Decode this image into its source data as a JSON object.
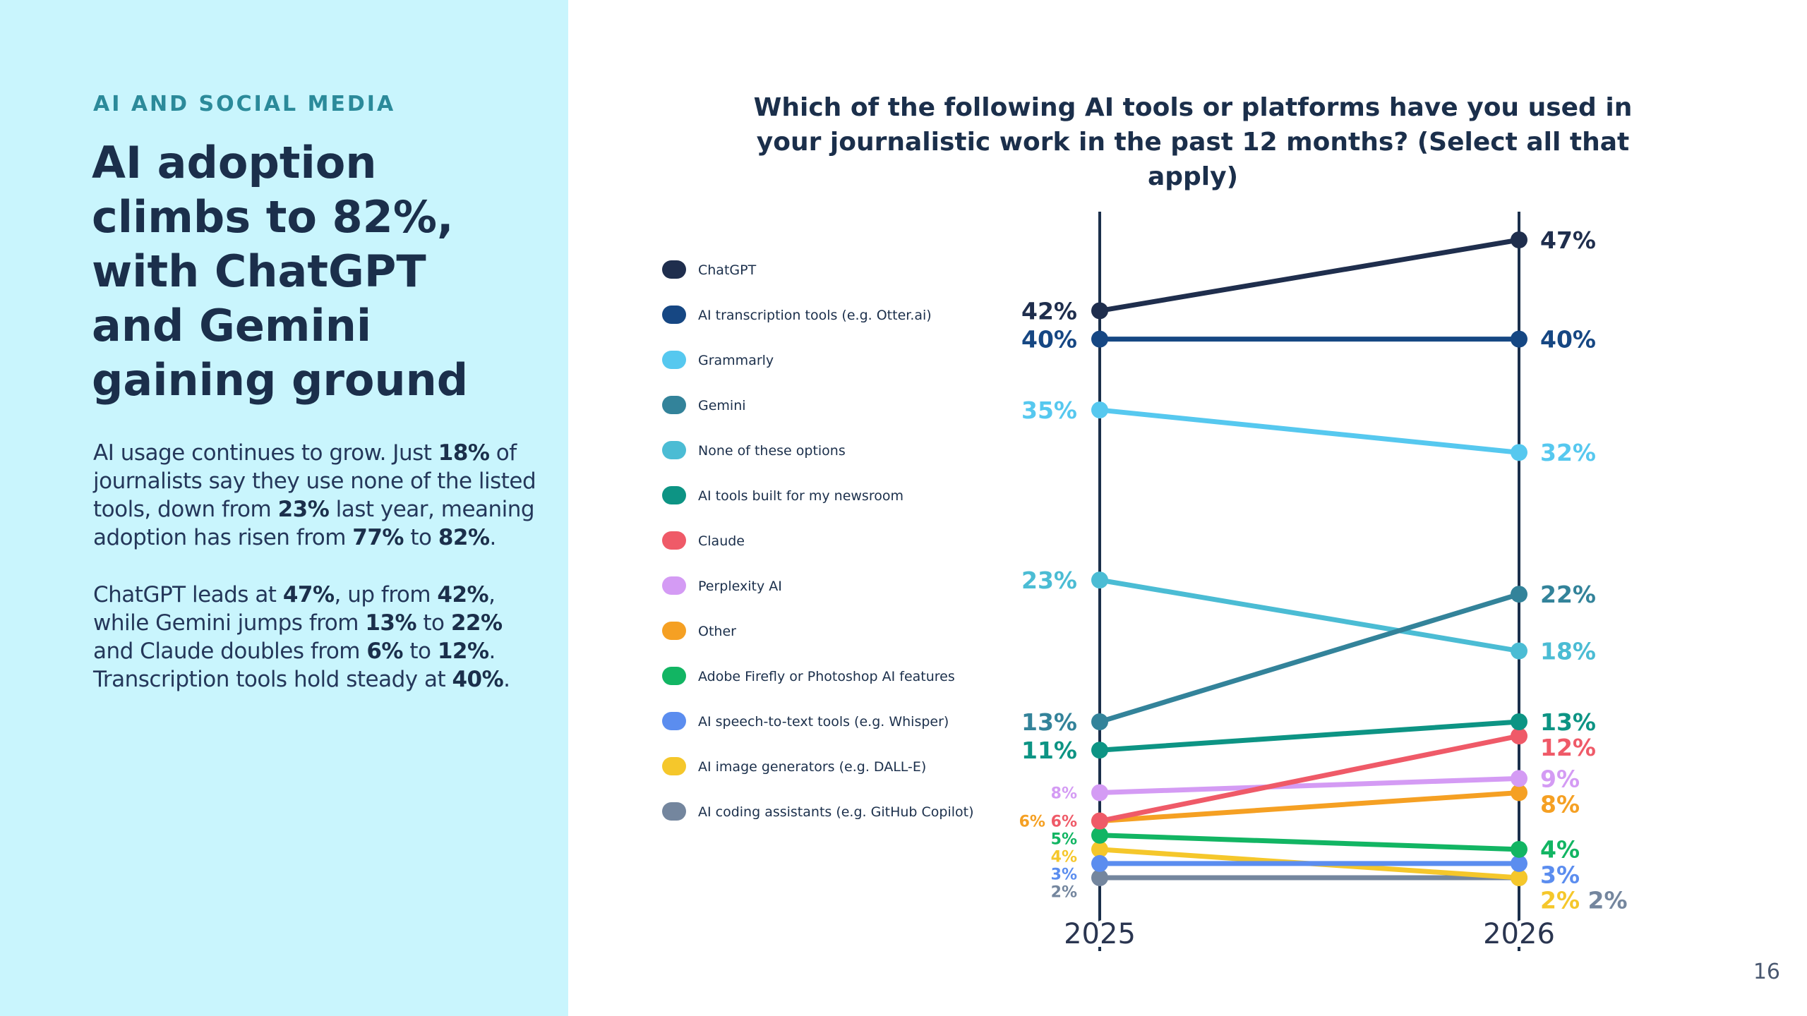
{
  "left": {
    "section_label": "AI AND SOCIAL MEDIA",
    "headline": "AI adoption climbs to 82%, with ChatGPT and Gemini gaining ground",
    "paragraphs": [
      [
        {
          "t": "AI usage continues to grow. Just ",
          "b": false
        },
        {
          "t": "18%",
          "b": true
        },
        {
          "t": " of journalists say they use none of the listed tools, down from ",
          "b": false
        },
        {
          "t": "23%",
          "b": true
        },
        {
          "t": " last year, meaning adoption has risen from ",
          "b": false
        },
        {
          "t": "77%",
          "b": true
        },
        {
          "t": " to ",
          "b": false
        },
        {
          "t": "82%",
          "b": true
        },
        {
          "t": ".",
          "b": false
        }
      ],
      [
        {
          "t": "ChatGPT leads at ",
          "b": false
        },
        {
          "t": "47%",
          "b": true
        },
        {
          "t": ", up from ",
          "b": false
        },
        {
          "t": "42%",
          "b": true
        },
        {
          "t": ", while Gemini jumps from ",
          "b": false
        },
        {
          "t": "13%",
          "b": true
        },
        {
          "t": " to ",
          "b": false
        },
        {
          "t": "22%",
          "b": true
        },
        {
          "t": " and Claude doubles from ",
          "b": false
        },
        {
          "t": "6%",
          "b": true
        },
        {
          "t": " to ",
          "b": false
        },
        {
          "t": "12%",
          "b": true
        },
        {
          "t": ". Transcription tools hold steady at ",
          "b": false
        },
        {
          "t": "40%",
          "b": true
        },
        {
          "t": ".",
          "b": false
        }
      ]
    ]
  },
  "page_number": "16",
  "chart_data": {
    "type": "line",
    "title": "Which of the following AI tools or platforms have you used in your journalistic work in the past 12 months? (Select all that apply)",
    "x": [
      "2025",
      "2026"
    ],
    "ylim": [
      2,
      47
    ],
    "value_suffix": "%",
    "grid": false,
    "legend_position": "left",
    "series": [
      {
        "name": "ChatGPT",
        "values": [
          42,
          47
        ],
        "color": "#1f2e4d"
      },
      {
        "name": "AI transcription tools (e.g. Otter.ai)",
        "values": [
          40,
          40
        ],
        "color": "#164783"
      },
      {
        "name": "Grammarly",
        "values": [
          35,
          32
        ],
        "color": "#56c8ef"
      },
      {
        "name": "Gemini",
        "values": [
          13,
          22
        ],
        "color": "#33839a"
      },
      {
        "name": "None of these options",
        "values": [
          23,
          18
        ],
        "color": "#4bbcd4"
      },
      {
        "name": "AI tools built for my newsroom",
        "values": [
          11,
          13
        ],
        "color": "#0d9484"
      },
      {
        "name": "Claude",
        "values": [
          6,
          12
        ],
        "color": "#ef5a68"
      },
      {
        "name": "Perplexity AI",
        "values": [
          8,
          9
        ],
        "color": "#d49bf4"
      },
      {
        "name": "Other",
        "values": [
          6,
          8
        ],
        "color": "#f5a023"
      },
      {
        "name": "Adobe Firefly or Photoshop AI features",
        "values": [
          5,
          4
        ],
        "color": "#12b563"
      },
      {
        "name": "AI speech-to-text tools (e.g. Whisper)",
        "values": [
          3,
          3
        ],
        "color": "#5b8def"
      },
      {
        "name": "AI image generators (e.g. DALL-E)",
        "values": [
          4,
          2
        ],
        "color": "#f5c72b"
      },
      {
        "name": "AI coding assistants (e.g. GitHub Copilot)",
        "values": [
          2,
          2
        ],
        "color": "#74869e"
      }
    ]
  }
}
